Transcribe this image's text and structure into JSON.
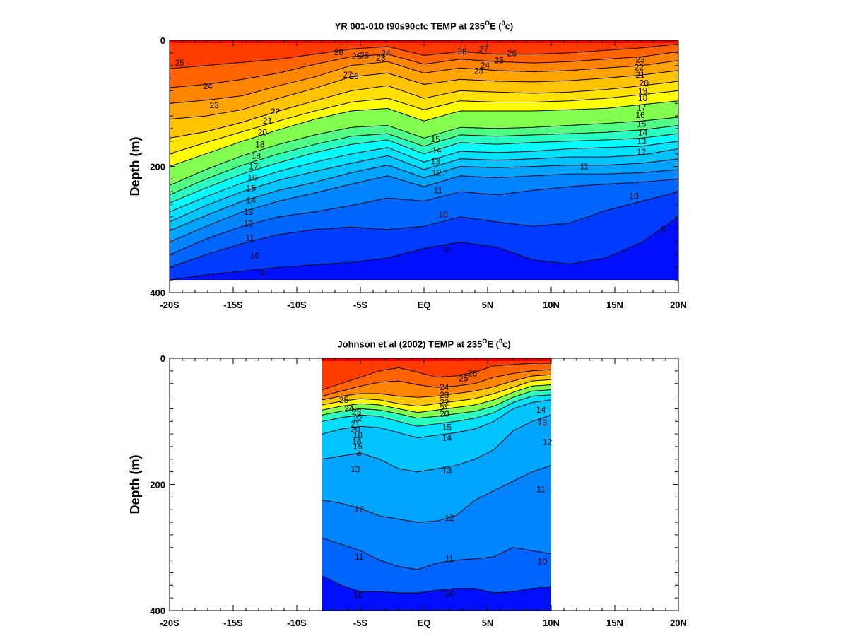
{
  "chart_data": [
    {
      "type": "contour",
      "title_prefix": "YR 001-010 t90s90cfc TEMP at 235",
      "title_deg": "O",
      "title_mid": "E (",
      "title_unit_sup": "0",
      "title_suffix": "c)",
      "xlabel": "",
      "ylabel": "Depth (m)",
      "x_ticks": [
        "-20S",
        "-15S",
        "-10S",
        "-5S",
        "EQ",
        "5N",
        "10N",
        "15N",
        "20N"
      ],
      "y_ticks": [
        "0",
        "200",
        "400"
      ],
      "xlim": [
        -20,
        20
      ],
      "ylim": [
        0,
        400
      ],
      "data_xlim": [
        -20,
        20
      ],
      "data_depth_max": 380,
      "colormap": [
        "#0000ff",
        "#0064ff",
        "#00b4ff",
        "#00ffff",
        "#64ff64",
        "#ffff00",
        "#ffb400",
        "#ff6400",
        "#ff0000"
      ],
      "temp_range": [
        8,
        28
      ],
      "contour_levels": [
        9,
        10,
        11,
        12,
        13,
        14,
        15,
        16,
        17,
        18,
        20,
        21,
        22,
        23,
        24,
        25,
        26,
        27,
        28
      ],
      "contours": [
        {
          "level": 9,
          "depths": [
            380,
            372,
            366,
            360,
            356,
            352,
            345,
            330,
            320,
            328,
            348,
            355,
            345,
            320,
            280
          ]
        },
        {
          "level": 10,
          "depths": [
            360,
            340,
            322,
            308,
            300,
            296,
            300,
            295,
            280,
            288,
            295,
            290,
            270,
            255,
            240
          ]
        },
        {
          "level": 11,
          "depths": [
            340,
            315,
            295,
            280,
            272,
            262,
            250,
            255,
            240,
            245,
            238,
            232,
            228,
            225,
            220
          ]
        },
        {
          "level": 12,
          "depths": [
            320,
            295,
            272,
            255,
            242,
            228,
            215,
            232,
            215,
            218,
            215,
            212,
            212,
            210,
            205
          ]
        },
        {
          "level": 13,
          "depths": [
            302,
            278,
            255,
            238,
            225,
            210,
            198,
            218,
            200,
            202,
            200,
            198,
            198,
            195,
            188
          ]
        },
        {
          "level": 14,
          "depths": [
            288,
            262,
            240,
            222,
            208,
            195,
            183,
            205,
            188,
            190,
            188,
            185,
            185,
            182,
            172
          ]
        },
        {
          "level": 15,
          "depths": [
            272,
            248,
            226,
            208,
            193,
            180,
            170,
            193,
            176,
            178,
            176,
            172,
            170,
            168,
            160
          ]
        },
        {
          "level": 16,
          "depths": [
            258,
            234,
            212,
            194,
            178,
            165,
            158,
            180,
            162,
            165,
            162,
            160,
            158,
            155,
            148
          ]
        },
        {
          "level": 17,
          "depths": [
            245,
            220,
            198,
            180,
            165,
            152,
            148,
            168,
            150,
            152,
            150,
            148,
            146,
            142,
            135
          ]
        },
        {
          "level": 18,
          "depths": [
            230,
            205,
            183,
            165,
            150,
            138,
            135,
            155,
            138,
            140,
            138,
            135,
            132,
            128,
            122
          ]
        },
        {
          "level": 20,
          "depths": [
            200,
            180,
            160,
            142,
            125,
            112,
            108,
            128,
            112,
            112,
            112,
            110,
            108,
            102,
            96
          ]
        },
        {
          "level": 21,
          "depths": [
            180,
            162,
            145,
            128,
            112,
            98,
            92,
            110,
            96,
            98,
            98,
            96,
            92,
            86,
            80
          ]
        },
        {
          "level": 22,
          "depths": [
            155,
            145,
            130,
            112,
            96,
            80,
            72,
            92,
            80,
            82,
            84,
            82,
            78,
            72,
            65
          ]
        },
        {
          "level": 23,
          "depths": [
            125,
            120,
            110,
            92,
            76,
            58,
            52,
            70,
            62,
            65,
            66,
            64,
            60,
            55,
            48
          ]
        },
        {
          "level": 24,
          "depths": [
            100,
            95,
            88,
            72,
            58,
            40,
            34,
            52,
            44,
            48,
            50,
            48,
            44,
            40,
            32
          ]
        },
        {
          "level": 25,
          "depths": [
            75,
            70,
            62,
            52,
            38,
            26,
            22,
            38,
            30,
            34,
            36,
            34,
            30,
            26,
            18
          ]
        },
        {
          "level": 26,
          "depths": [
            45,
            40,
            35,
            30,
            22,
            14,
            10,
            24,
            18,
            22,
            22,
            20,
            16,
            12,
            6
          ]
        }
      ],
      "contour_labels": [
        {
          "text": "25",
          "x": -19.2,
          "depth": 36
        },
        {
          "text": "24",
          "x": -17.0,
          "depth": 73
        },
        {
          "text": "23",
          "x": -16.5,
          "depth": 103
        },
        {
          "text": "22",
          "x": -11.7,
          "depth": 113
        },
        {
          "text": "21",
          "x": -12.3,
          "depth": 128
        },
        {
          "text": "20",
          "x": -12.7,
          "depth": 146
        },
        {
          "text": "18",
          "x": -12.9,
          "depth": 165
        },
        {
          "text": "18",
          "x": -13.2,
          "depth": 183
        },
        {
          "text": "17",
          "x": -13.4,
          "depth": 200
        },
        {
          "text": "16",
          "x": -13.5,
          "depth": 218
        },
        {
          "text": "15",
          "x": -13.6,
          "depth": 235
        },
        {
          "text": "14",
          "x": -13.6,
          "depth": 254
        },
        {
          "text": "13",
          "x": -13.8,
          "depth": 272
        },
        {
          "text": "12",
          "x": -13.8,
          "depth": 291
        },
        {
          "text": "11",
          "x": -13.7,
          "depth": 313
        },
        {
          "text": "10",
          "x": -13.3,
          "depth": 342
        },
        {
          "text": "9",
          "x": -12.7,
          "depth": 370
        },
        {
          "text": "9",
          "x": 1.8,
          "depth": 332
        },
        {
          "text": "10",
          "x": 1.5,
          "depth": 277
        },
        {
          "text": "11",
          "x": 1.1,
          "depth": 238
        },
        {
          "text": "12",
          "x": 1.0,
          "depth": 210
        },
        {
          "text": "13",
          "x": 0.9,
          "depth": 192
        },
        {
          "text": "14",
          "x": 1.0,
          "depth": 175
        },
        {
          "text": "15",
          "x": 0.9,
          "depth": 157
        },
        {
          "text": "11",
          "x": 12.6,
          "depth": 200
        },
        {
          "text": "10",
          "x": 16.5,
          "depth": 247
        },
        {
          "text": "9",
          "x": 18.8,
          "depth": 300
        },
        {
          "text": "12",
          "x": 17.1,
          "depth": 177
        },
        {
          "text": "13",
          "x": 17.1,
          "depth": 160
        },
        {
          "text": "14",
          "x": 17.2,
          "depth": 146
        },
        {
          "text": "15",
          "x": 17.1,
          "depth": 133
        },
        {
          "text": "16",
          "x": 17.0,
          "depth": 119
        },
        {
          "text": "17",
          "x": 17.1,
          "depth": 107
        },
        {
          "text": "18",
          "x": 17.2,
          "depth": 92
        },
        {
          "text": "19",
          "x": 17.2,
          "depth": 80
        },
        {
          "text": "20",
          "x": 17.3,
          "depth": 68
        },
        {
          "text": "21",
          "x": 17.0,
          "depth": 55
        },
        {
          "text": "22",
          "x": 16.9,
          "depth": 43
        },
        {
          "text": "23",
          "x": 17.0,
          "depth": 31
        },
        {
          "text": "23",
          "x": 4.3,
          "depth": 49
        },
        {
          "text": "24",
          "x": 4.8,
          "depth": 40
        },
        {
          "text": "25",
          "x": 5.9,
          "depth": 32
        },
        {
          "text": "26",
          "x": 6.9,
          "depth": 21
        },
        {
          "text": "27",
          "x": 4.7,
          "depth": 14
        },
        {
          "text": "28",
          "x": 3.0,
          "depth": 18
        },
        {
          "text": "23",
          "x": -3.4,
          "depth": 28
        },
        {
          "text": "24",
          "x": -3.0,
          "depth": 21
        },
        {
          "text": "25",
          "x": -4.7,
          "depth": 24
        },
        {
          "text": "26",
          "x": -5.3,
          "depth": 25
        },
        {
          "text": "27",
          "x": -6.0,
          "depth": 55
        },
        {
          "text": "26",
          "x": -5.5,
          "depth": 57
        },
        {
          "text": "28",
          "x": -6.7,
          "depth": 19
        }
      ]
    },
    {
      "type": "contour",
      "title_prefix": "Johnson et al (2002) TEMP at 235",
      "title_deg": "O",
      "title_mid": "E (",
      "title_unit_sup": "0",
      "title_suffix": "c)",
      "xlabel": "",
      "ylabel": "Depth (m)",
      "x_ticks": [
        "-20S",
        "-15S",
        "-10S",
        "-5S",
        "EQ",
        "5N",
        "10N",
        "15N",
        "20N"
      ],
      "y_ticks": [
        "0",
        "200",
        "400"
      ],
      "xlim": [
        -20,
        20
      ],
      "ylim": [
        0,
        400
      ],
      "data_xlim": [
        -8,
        10
      ],
      "data_depth_max": 400,
      "colormap": [
        "#0000ff",
        "#0064ff",
        "#00b4ff",
        "#00ffff",
        "#64ff64",
        "#ffff00",
        "#ffb400",
        "#ff6400",
        "#ff0000"
      ],
      "temp_range": [
        8,
        28
      ],
      "contours": [
        {
          "level": 10,
          "depths": [
            345,
            360,
            370,
            370,
            372,
            372,
            368,
            365,
            365,
            372,
            370,
            365,
            362
          ]
        },
        {
          "level": 11,
          "depths": [
            285,
            295,
            305,
            320,
            330,
            335,
            325,
            320,
            318,
            315,
            300,
            305,
            310
          ]
        },
        {
          "level": 12,
          "depths": [
            225,
            230,
            238,
            250,
            255,
            260,
            258,
            250,
            225,
            210,
            195,
            180,
            170
          ]
        },
        {
          "level": 13,
          "depths": [
            160,
            155,
            150,
            160,
            175,
            180,
            175,
            170,
            160,
            145,
            115,
            100,
            90
          ]
        },
        {
          "level": 14,
          "depths": [
            120,
            112,
            108,
            110,
            118,
            126,
            122,
            118,
            112,
            100,
            80,
            70,
            66
          ]
        },
        {
          "level": 16,
          "depths": [
            100,
            94,
            90,
            92,
            100,
            108,
            104,
            100,
            95,
            86,
            70,
            60,
            58
          ]
        },
        {
          "level": 18,
          "depths": [
            90,
            84,
            80,
            82,
            88,
            95,
            92,
            88,
            84,
            76,
            62,
            52,
            50
          ]
        },
        {
          "level": 20,
          "depths": [
            82,
            76,
            72,
            74,
            80,
            86,
            82,
            78,
            74,
            66,
            54,
            44,
            42
          ]
        },
        {
          "level": 22,
          "depths": [
            74,
            68,
            64,
            66,
            72,
            76,
            72,
            68,
            64,
            56,
            46,
            36,
            34
          ]
        },
        {
          "level": 24,
          "depths": [
            66,
            60,
            56,
            56,
            60,
            62,
            60,
            56,
            52,
            45,
            36,
            28,
            26
          ]
        },
        {
          "level": 25,
          "depths": [
            60,
            52,
            44,
            38,
            36,
            42,
            46,
            44,
            40,
            30,
            24,
            20,
            18
          ]
        },
        {
          "level": 26,
          "depths": [
            50,
            40,
            30,
            20,
            15,
            22,
            30,
            28,
            22,
            12,
            10,
            8,
            8
          ]
        }
      ],
      "contour_labels": [
        {
          "text": "13",
          "x": -5.4,
          "depth": 176
        },
        {
          "text": "13",
          "x": 1.8,
          "depth": 178
        },
        {
          "text": "12",
          "x": -5.1,
          "depth": 240
        },
        {
          "text": "12",
          "x": 2.0,
          "depth": 253
        },
        {
          "text": "11",
          "x": -5.1,
          "depth": 315
        },
        {
          "text": "11",
          "x": 2.0,
          "depth": 318
        },
        {
          "text": "10",
          "x": -5.2,
          "depth": 375
        },
        {
          "text": "10",
          "x": 2.0,
          "depth": 373
        },
        {
          "text": "14",
          "x": 1.8,
          "depth": 126
        },
        {
          "text": "15",
          "x": 1.8,
          "depth": 109
        },
        {
          "text": "14",
          "x": 9.2,
          "depth": 82
        },
        {
          "text": "13",
          "x": 9.3,
          "depth": 102
        },
        {
          "text": "12",
          "x": 9.7,
          "depth": 133
        },
        {
          "text": "11",
          "x": 9.2,
          "depth": 208
        },
        {
          "text": "10",
          "x": 9.3,
          "depth": 322
        },
        {
          "text": "26",
          "x": 3.8,
          "depth": 24
        },
        {
          "text": "25",
          "x": 3.1,
          "depth": 32
        },
        {
          "text": "24",
          "x": 1.6,
          "depth": 46
        },
        {
          "text": "23",
          "x": 1.6,
          "depth": 58
        },
        {
          "text": "22",
          "x": 1.6,
          "depth": 70
        },
        {
          "text": "21",
          "x": 1.6,
          "depth": 80
        },
        {
          "text": "20",
          "x": 1.6,
          "depth": 88
        },
        {
          "text": "25",
          "x": -6.3,
          "depth": 66
        },
        {
          "text": "24",
          "x": -5.9,
          "depth": 80
        },
        {
          "text": "23",
          "x": -5.3,
          "depth": 85
        },
        {
          "text": "22",
          "x": -5.2,
          "depth": 95
        },
        {
          "text": "21",
          "x": -5.4,
          "depth": 105
        },
        {
          "text": "20",
          "x": -5.4,
          "depth": 113
        },
        {
          "text": "18",
          "x": -5.2,
          "depth": 122
        },
        {
          "text": "16",
          "x": -5.3,
          "depth": 132
        },
        {
          "text": "15",
          "x": -5.2,
          "depth": 140
        },
        {
          "text": "4",
          "x": -5.1,
          "depth": 152
        }
      ]
    }
  ]
}
